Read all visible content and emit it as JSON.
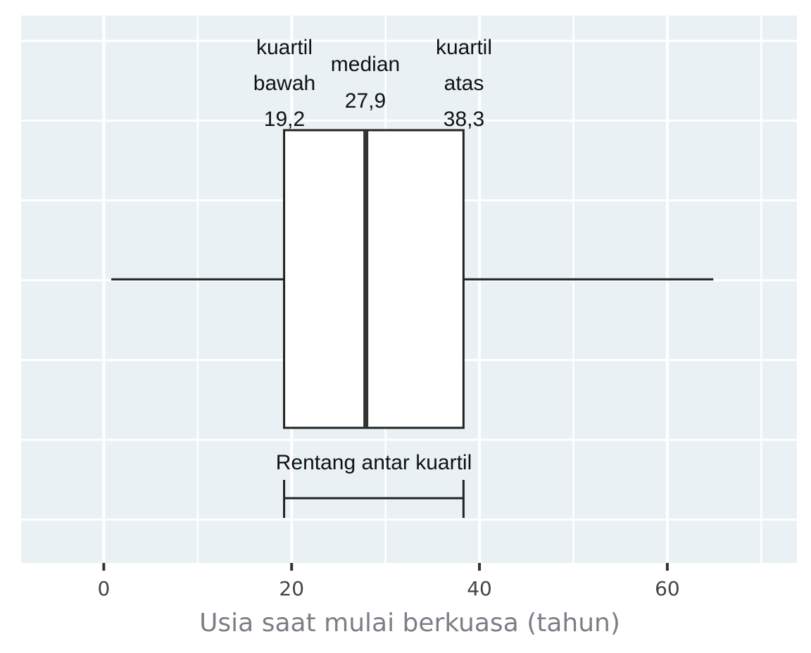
{
  "chart_data": {
    "type": "boxplot",
    "orientation": "horizontal",
    "xlabel": "Usia saat mulai berkuasa (tahun)",
    "xlim": [
      -8.8,
      73.8
    ],
    "xticks": [
      0,
      20,
      40,
      60
    ],
    "xtick_labels": [
      "0",
      "20",
      "40",
      "60"
    ],
    "grid": true,
    "box": {
      "min": 0.8,
      "q1": 19.2,
      "median": 27.9,
      "q3": 38.3,
      "max": 64.9
    },
    "annotations": {
      "q1": [
        "kuartil",
        "bawah",
        "19,2"
      ],
      "median": [
        "median",
        "27,9"
      ],
      "q3": [
        "kuartil",
        "atas",
        "38,3"
      ],
      "iqr": "Rentang antar kuartil"
    },
    "colors": {
      "panel": "#e9f1f5",
      "grid": "#ffffff",
      "box_fill": "#ffffff",
      "line": "#222222"
    }
  }
}
